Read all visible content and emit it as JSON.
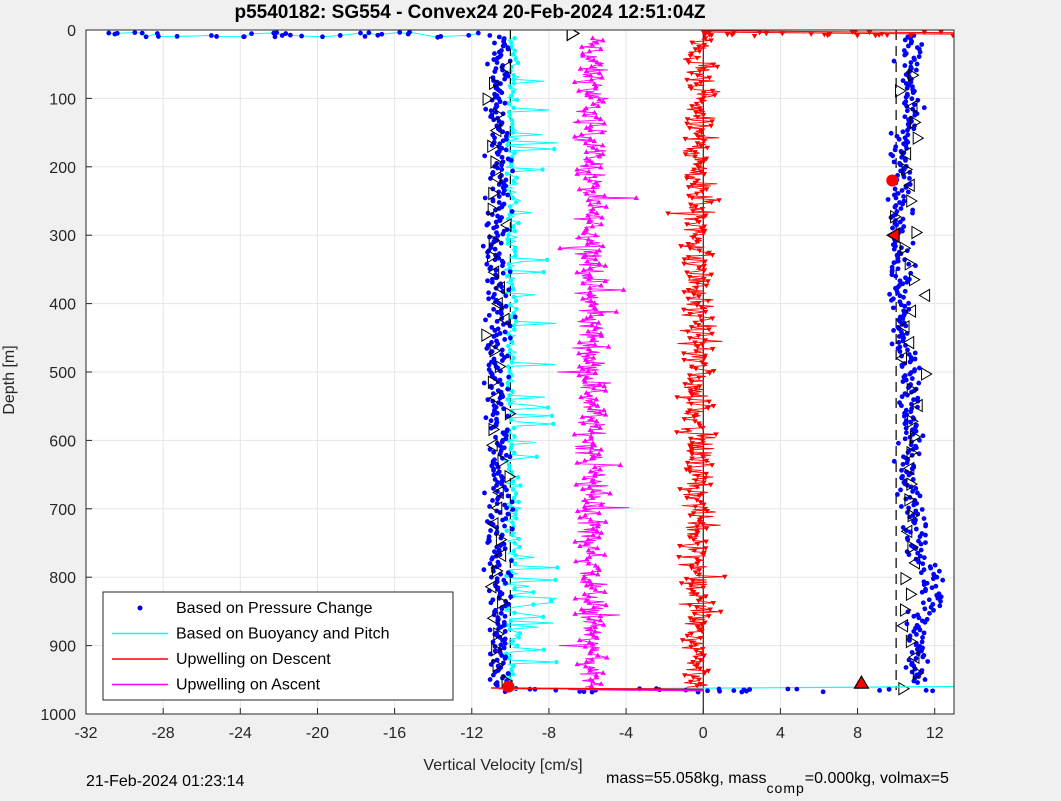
{
  "chart_data": {
    "type": "scatter",
    "title": "p5540182: SG554 - Convex24 20-Feb-2024 12:51:04Z",
    "xlabel": "Vertical Velocity [cm/s]",
    "ylabel": "Depth [m]",
    "xlim": [
      -32,
      13
    ],
    "ylim": [
      0,
      1000
    ],
    "y_reversed": true,
    "grid": true,
    "xticks": [
      -32,
      -28,
      -24,
      -20,
      -16,
      -12,
      -8,
      -4,
      0,
      4,
      8,
      12
    ],
    "yticks": [
      0,
      100,
      200,
      300,
      400,
      500,
      600,
      700,
      800,
      900,
      1000
    ],
    "legend_position": "bottom-left",
    "reference_lines": {
      "down": -10,
      "up": 10
    },
    "series": [
      {
        "name": "Based on Pressure Change",
        "color": "#0000ff",
        "marker": "dot",
        "descent_mean": -10.6,
        "ascent_mean": 10.7,
        "depth_range": [
          0,
          965
        ]
      },
      {
        "name": "Based on Buoyancy and Pitch",
        "color": "#00ffff",
        "marker": "circle-line",
        "descent_mean": -9.9,
        "depth_range": [
          0,
          965
        ]
      },
      {
        "name": "Upwelling on Descent",
        "color": "#ff0000",
        "marker": "triangle-down-line",
        "mean": -0.3,
        "depth_range": [
          0,
          965
        ]
      },
      {
        "name": "Upwelling on Ascent",
        "color": "#ff00ff",
        "marker": "triangle-up-line",
        "mean": -5.8,
        "depth_range": [
          0,
          965
        ]
      }
    ],
    "markers": [
      {
        "type": "triangle",
        "direction": "right",
        "color": "#000000",
        "x": -6.8,
        "y": 5
      },
      {
        "type": "triangle",
        "direction": "up",
        "color": "#ff0000",
        "x": 8.2,
        "y": 955
      },
      {
        "type": "circle",
        "color": "#ff0000",
        "x": 9.8,
        "y": 220
      },
      {
        "type": "triangle",
        "direction": "left",
        "color": "#ff0000",
        "x": 9.9,
        "y": 300
      },
      {
        "type": "circle",
        "color": "#ff0000",
        "x": -10.1,
        "y": 960
      }
    ]
  },
  "footer": {
    "timestamp": "21-Feb-2024 01:23:14",
    "mass_text": "mass=55.058kg, mass",
    "sub": "comp",
    "mass_tail": "=0.000kg, volmax=5"
  }
}
